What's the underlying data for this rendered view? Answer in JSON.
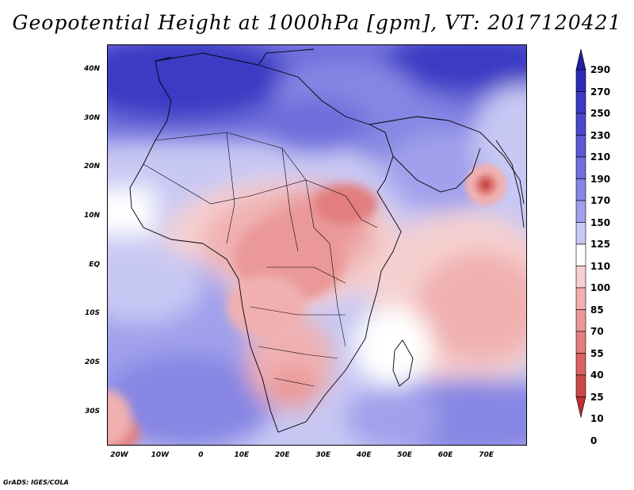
{
  "title": "Geopotential Height at 1000hPa [gpm], VT: 2017120421",
  "credit": "GrADS: IGES/COLA",
  "map": {
    "lon_range": [
      -23,
      80
    ],
    "lat_range": [
      -37,
      45
    ],
    "lat_labels": [
      {
        "lat": 40,
        "text": "40N"
      },
      {
        "lat": 30,
        "text": "30N"
      },
      {
        "lat": 20,
        "text": "20N"
      },
      {
        "lat": 10,
        "text": "10N"
      },
      {
        "lat": 0,
        "text": "EQ"
      },
      {
        "lat": -10,
        "text": "10S"
      },
      {
        "lat": -20,
        "text": "20S"
      },
      {
        "lat": -30,
        "text": "30S"
      }
    ],
    "lon_labels": [
      {
        "lon": -20,
        "text": "20W"
      },
      {
        "lon": -10,
        "text": "10W"
      },
      {
        "lon": 0,
        "text": "0"
      },
      {
        "lon": 10,
        "text": "10E"
      },
      {
        "lon": 20,
        "text": "20E"
      },
      {
        "lon": 30,
        "text": "30E"
      },
      {
        "lon": 40,
        "text": "40E"
      },
      {
        "lon": 50,
        "text": "50E"
      },
      {
        "lon": 60,
        "text": "60E"
      },
      {
        "lon": 70,
        "text": "70E"
      }
    ]
  },
  "colorbar": {
    "levels": [
      "290",
      "270",
      "250",
      "230",
      "210",
      "190",
      "170",
      "150",
      "125",
      "110",
      "100",
      "85",
      "70",
      "55",
      "40",
      "25",
      "10",
      "0"
    ],
    "colors": [
      "#2020a0",
      "#2c2cb4",
      "#3a3ac4",
      "#4848cc",
      "#5a5ad4",
      "#6e6edc",
      "#8686e4",
      "#a0a0ec",
      "#c8c8f4",
      "#ffffff",
      "#f6d0d0",
      "#f0b0b0",
      "#ea9898",
      "#e27e7e",
      "#d86262",
      "#cc4848",
      "#bc3030"
    ]
  },
  "field": {
    "units": "gpm",
    "features": [
      {
        "name": "tropical-cyclone-low",
        "lon": 69.5,
        "lat": 16.5,
        "value": 40
      },
      {
        "name": "southern-africa-low",
        "lon": 25,
        "lat": -25,
        "value": 85
      },
      {
        "name": "sahara-high",
        "lon": -5,
        "lat": 38,
        "value": 270
      },
      {
        "name": "south-atlantic-high",
        "lon": 0,
        "lat": -30,
        "value": 190
      }
    ]
  }
}
